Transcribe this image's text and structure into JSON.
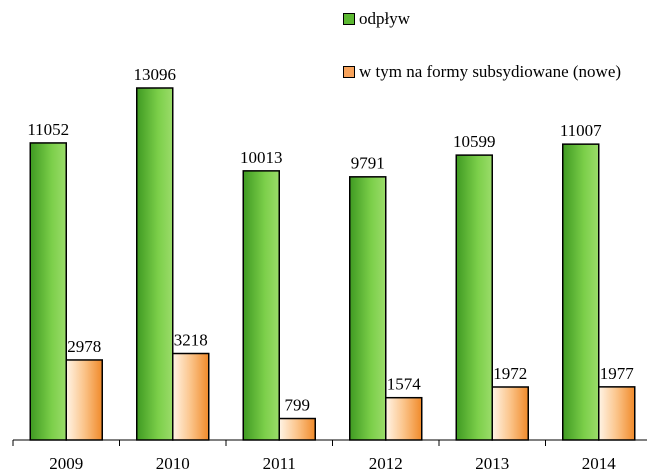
{
  "chart_data": {
    "type": "bar",
    "categories": [
      "2009",
      "2010",
      "2011",
      "2012",
      "2013",
      "2014"
    ],
    "series": [
      {
        "name": "odpływ",
        "color": "#5cb832",
        "values": [
          11052,
          13096,
          10013,
          9791,
          10599,
          11007
        ]
      },
      {
        "name": "w tym na formy subsydiowane (nowe)",
        "color": "#f7a35c",
        "values": [
          2978,
          3218,
          799,
          1574,
          1972,
          1977
        ]
      }
    ]
  }
}
